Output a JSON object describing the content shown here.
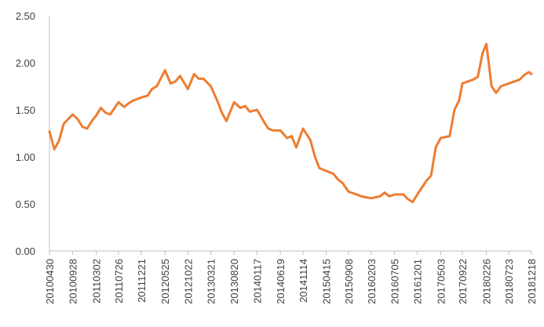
{
  "chart_data": {
    "type": "line",
    "title": "",
    "xlabel": "",
    "ylabel": "",
    "ylim": [
      0,
      2.5
    ],
    "yticks": [
      "0.00",
      "0.50",
      "1.00",
      "1.50",
      "2.00",
      "2.50"
    ],
    "grid": false,
    "legend": "none",
    "x_ticks": [
      "20100430",
      "20100928",
      "20110302",
      "20110726",
      "20111221",
      "20120525",
      "20121022",
      "20130321",
      "20130820",
      "20140117",
      "20140619",
      "20141114",
      "20150415",
      "20150908",
      "20160203",
      "20160705",
      "20161201",
      "20170503",
      "20170922",
      "20180226",
      "20180723",
      "20181218"
    ],
    "series": [
      {
        "name": "",
        "color": "#ED7D31",
        "x": [
          "20100430",
          "20100601",
          "20100701",
          "20100801",
          "20100928",
          "20101101",
          "20101201",
          "20110101",
          "20110201",
          "20110302",
          "20110401",
          "20110501",
          "20110601",
          "20110726",
          "20110901",
          "20111001",
          "20111101",
          "20111221",
          "20120201",
          "20120301",
          "20120401",
          "20120525",
          "20120701",
          "20120801",
          "20120901",
          "20121022",
          "20121201",
          "20130101",
          "20130201",
          "20130321",
          "20130501",
          "20130601",
          "20130701",
          "20130820",
          "20131001",
          "20131101",
          "20131201",
          "20140117",
          "20140301",
          "20140401",
          "20140501",
          "20140619",
          "20140801",
          "20140901",
          "20141001",
          "20141114",
          "20150101",
          "20150201",
          "20150301",
          "20150415",
          "20150601",
          "20150701",
          "20150801",
          "20150908",
          "20151101",
          "20151201",
          "20160101",
          "20160203",
          "20160401",
          "20160501",
          "20160601",
          "20160705",
          "20160901",
          "20161001",
          "20161101",
          "20161201",
          "20170201",
          "20170301",
          "20170401",
          "20170503",
          "20170701",
          "20170801",
          "20170901",
          "20170922",
          "20171201",
          "20180101",
          "20180201",
          "20180226",
          "20180401",
          "20180501",
          "20180601",
          "20180723",
          "20181001",
          "20181101",
          "20181201",
          "20181218"
        ],
        "values": [
          1.27,
          1.08,
          1.17,
          1.35,
          1.45,
          1.4,
          1.32,
          1.3,
          1.38,
          1.44,
          1.52,
          1.47,
          1.45,
          1.58,
          1.53,
          1.57,
          1.6,
          1.63,
          1.65,
          1.72,
          1.75,
          1.92,
          1.78,
          1.8,
          1.86,
          1.72,
          1.88,
          1.83,
          1.83,
          1.75,
          1.6,
          1.47,
          1.38,
          1.58,
          1.52,
          1.54,
          1.48,
          1.5,
          1.38,
          1.3,
          1.28,
          1.28,
          1.2,
          1.22,
          1.1,
          1.3,
          1.18,
          1.0,
          0.88,
          0.85,
          0.82,
          0.76,
          0.72,
          0.63,
          0.6,
          0.58,
          0.57,
          0.56,
          0.58,
          0.62,
          0.58,
          0.6,
          0.6,
          0.55,
          0.52,
          0.6,
          0.75,
          0.8,
          1.1,
          1.2,
          1.22,
          1.5,
          1.6,
          1.78,
          1.82,
          1.85,
          2.1,
          2.2,
          1.75,
          1.68,
          1.75,
          1.78,
          1.82,
          1.87,
          1.9,
          1.88
        ]
      }
    ]
  }
}
